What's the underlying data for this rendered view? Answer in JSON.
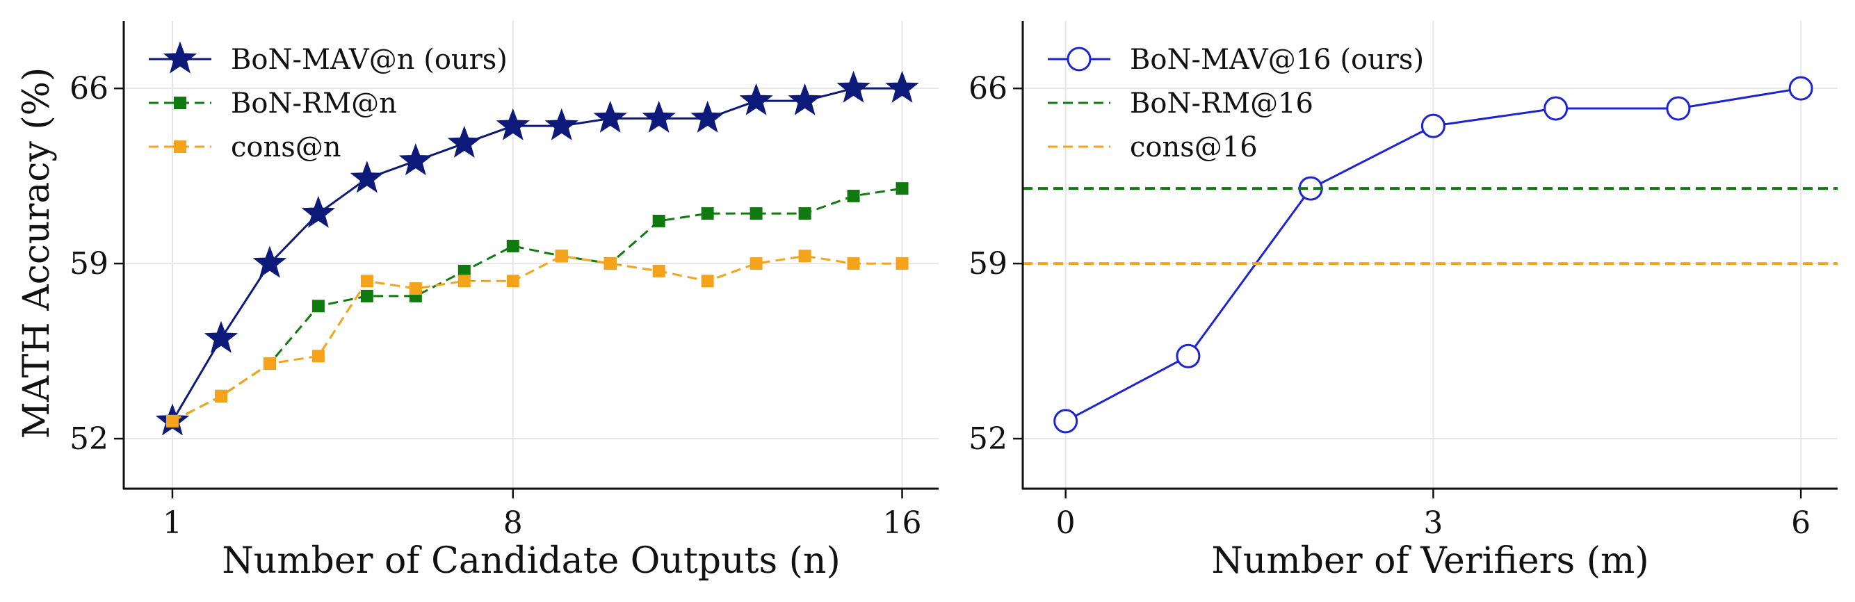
{
  "chart_data": [
    {
      "type": "line",
      "xlabel": "Number of Candidate Outputs (n)",
      "ylabel": "MATH Accuracy (%)",
      "xlim": [
        0.0,
        16.75
      ],
      "ylim": [
        50.0,
        68.7
      ],
      "xticks": [
        1,
        8,
        16
      ],
      "xtick_labels": [
        "1",
        "8",
        "16"
      ],
      "yticks": [
        52,
        59,
        66
      ],
      "ytick_labels": [
        "52",
        "59",
        "66"
      ],
      "grid": true,
      "legend_position": "top-left",
      "x": [
        1,
        2,
        3,
        4,
        5,
        6,
        7,
        8,
        9,
        10,
        11,
        12,
        13,
        14,
        15,
        16
      ],
      "series": [
        {
          "name": "BoN-MAV@n (ours)",
          "color": "#0d1a7a",
          "marker": "star",
          "dash": "solid",
          "values": [
            52.7,
            56.0,
            59.0,
            61.0,
            62.4,
            63.1,
            63.8,
            64.5,
            64.5,
            64.8,
            64.8,
            64.8,
            65.5,
            65.5,
            66.0,
            66.0
          ]
        },
        {
          "name": "BoN-RM@n",
          "color": "#107a10",
          "marker": "square",
          "dash": "dashed",
          "values": [
            52.7,
            53.7,
            55.0,
            57.3,
            57.7,
            57.7,
            58.7,
            59.7,
            59.3,
            59.0,
            60.7,
            61.0,
            61.0,
            61.0,
            61.7,
            62.0
          ]
        },
        {
          "name": "cons@n",
          "color": "#f5a31a",
          "marker": "square",
          "dash": "dashed",
          "values": [
            52.7,
            null,
            null,
            55.3,
            58.3,
            58.0,
            58.3,
            58.3,
            59.3,
            null,
            58.7,
            58.3,
            59.0,
            59.3,
            59.0,
            59.0
          ],
          "values_fill_from_rm": [
            2,
            3
          ]
        }
      ]
    },
    {
      "type": "line",
      "xlabel": "Number of Verifiers (m)",
      "ylabel": "",
      "xlim": [
        -0.35,
        6.3
      ],
      "ylim": [
        50.0,
        68.7
      ],
      "xticks": [
        0,
        3,
        6
      ],
      "xtick_labels": [
        "0",
        "3",
        "6"
      ],
      "yticks": [
        52,
        59,
        66
      ],
      "ytick_labels": [
        "52",
        "59",
        "66"
      ],
      "grid": true,
      "legend_position": "top-left",
      "x": [
        0,
        1,
        2,
        3,
        4,
        5,
        6
      ],
      "series": [
        {
          "name": "BoN-MAV@16 (ours)",
          "color": "#1c22d6",
          "marker": "circle",
          "dash": "solid",
          "values": [
            52.7,
            55.3,
            62.0,
            64.5,
            65.2,
            65.2,
            66.0
          ]
        },
        {
          "name": "BoN-RM@16",
          "color": "#107a10",
          "marker": "none",
          "dash": "dashed",
          "hline": 62.0
        },
        {
          "name": "cons@16",
          "color": "#f5a31a",
          "marker": "none",
          "dash": "dashed",
          "hline": 59.0
        }
      ]
    }
  ]
}
